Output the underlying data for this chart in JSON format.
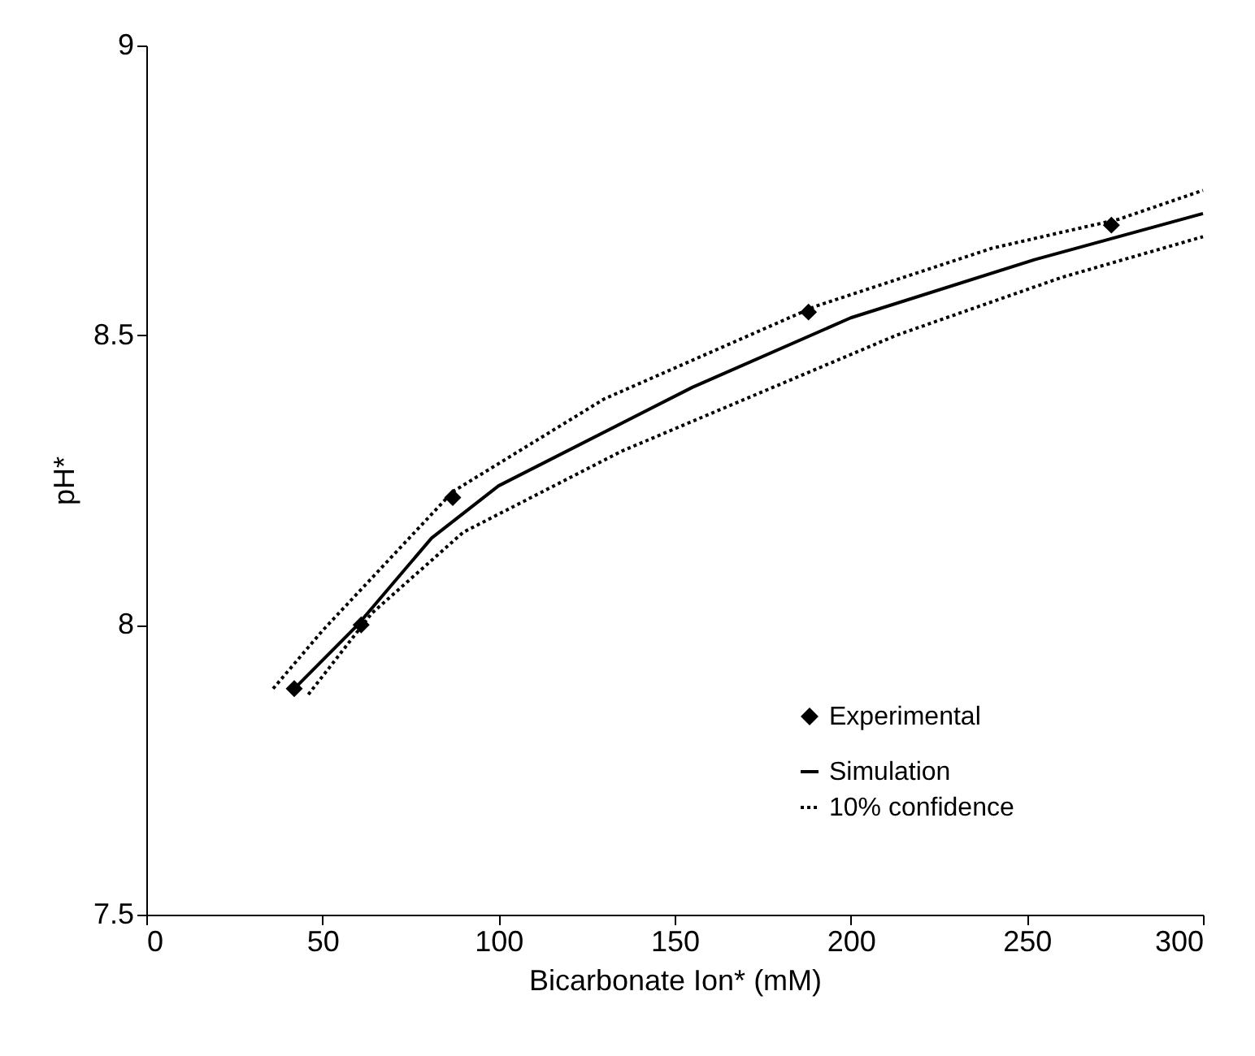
{
  "chart_data": {
    "type": "line",
    "xlabel": "Bicarbonate Ion* (mM)",
    "ylabel": "pH*",
    "xlim": [
      0,
      300
    ],
    "xticks": [
      0,
      50,
      100,
      150,
      200,
      250,
      300
    ],
    "ylim": [
      7.5,
      9
    ],
    "yticks": [
      7.5,
      {
        "value": 8,
        "label": "8"
      },
      8.5,
      {
        "value": 9,
        "label": "9"
      }
    ],
    "grid": false,
    "legend": "bottom right",
    "series": [
      {
        "name": "Experimental",
        "type": "scatter",
        "marker": "diamond",
        "color": "#000000",
        "x": [
          42,
          61,
          87,
          188,
          274
        ],
        "values": [
          7.89,
          8.0,
          8.22,
          8.54,
          8.69
        ]
      },
      {
        "name": "Simulation",
        "line_style": "solid",
        "color": "#000000",
        "x": [
          42,
          60,
          81,
          100,
          155,
          200,
          252,
          300
        ],
        "values": [
          7.89,
          8.0,
          8.15,
          8.24,
          8.41,
          8.53,
          8.63,
          8.71
        ]
      },
      {
        "name": "10% confidence",
        "line_style": "dotted",
        "color": "#000000",
        "x": [
          36,
          50,
          87,
          130,
          190,
          240,
          276,
          300
        ],
        "values": [
          7.89,
          7.99,
          8.23,
          8.39,
          8.55,
          8.65,
          8.7,
          8.75
        ]
      },
      {
        "line_style": "dotted",
        "color": "#000000",
        "x": [
          46,
          64,
          90,
          135,
          213,
          260,
          300
        ],
        "values": [
          7.88,
          8.02,
          8.16,
          8.3,
          8.5,
          8.6,
          8.67
        ]
      }
    ]
  }
}
